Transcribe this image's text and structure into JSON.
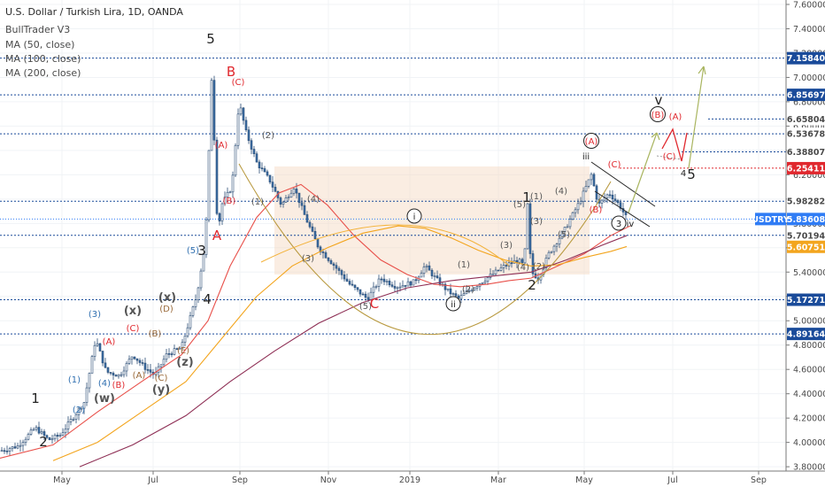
{
  "header": {
    "title": "U.S. Dollar / Turkish Lira, 1D, OANDA",
    "indicator": "BullTrader V3",
    "ma50": "MA (50, close)",
    "ma100": "MA (100, close)",
    "ma200": "MA (200, close)"
  },
  "colors": {
    "wave_black": "#222222",
    "wave_blue": "#2f6fb0",
    "wave_red": "#e0282e",
    "wave_brown": "#9a6a3a",
    "wave_grey": "#555555",
    "ma50": "#e8504a",
    "ma100": "#f3a51e",
    "ma200": "#8e2f55",
    "level_line": "#1a4b9a",
    "price_badge": "#2f73d9",
    "current_badge": "#2f7cf5"
  },
  "chart_data": {
    "type": "candlestick",
    "symbol": "USDTRY",
    "y_axis": {
      "ticks": [
        "7.60000",
        "7.40000",
        "7.20000",
        "7.00000",
        "6.80000",
        "6.60000",
        "6.40000",
        "6.20000",
        "6.00000",
        "5.80000",
        "5.60000",
        "5.40000",
        "5.20000",
        "5.00000",
        "4.80000",
        "4.60000",
        "4.40000",
        "4.20000",
        "4.00000",
        "3.80000"
      ],
      "ylim": [
        3.76,
        7.6
      ]
    },
    "x_axis": {
      "ticks": [
        "May",
        "Jul",
        "Sep",
        "Nov",
        "2019",
        "Mar",
        "May",
        "Jul",
        "Sep"
      ]
    },
    "price_levels": [
      {
        "value": 7.1584,
        "label": "7.15840",
        "style": "dotted",
        "badge": true
      },
      {
        "value": 6.85697,
        "label": "6.85697",
        "style": "dotted",
        "badge": true
      },
      {
        "value": 6.65804,
        "label": "6.65804",
        "style": "short-dotted",
        "badge": false
      },
      {
        "value": 6.53678,
        "label": "6.53678",
        "style": "dotted",
        "badge": false
      },
      {
        "value": 6.38807,
        "label": "6.38807",
        "style": "short-dotted",
        "badge": false
      },
      {
        "value": 6.25411,
        "label": "6.25411",
        "style": "red-dotted",
        "badge": true,
        "color": "#e0282e"
      },
      {
        "value": 5.98282,
        "label": "5.98282",
        "style": "dotted",
        "badge": false
      },
      {
        "value": 5.83608,
        "label": "5.83608",
        "style": "current",
        "badge": true,
        "color": "#2f7cf5"
      },
      {
        "value": 5.70194,
        "label": "5.70194",
        "style": "dotted",
        "badge": false
      },
      {
        "value": 5.60751,
        "label": "5.60751",
        "style": "ma",
        "badge": true,
        "color": "#f3a51e"
      },
      {
        "value": 5.17271,
        "label": "5.17271",
        "style": "dotted",
        "badge": true
      },
      {
        "value": 4.89164,
        "label": "4.89164",
        "style": "dotted",
        "badge": true
      }
    ],
    "current_price": {
      "symbol": "USDTRY",
      "value": "5.83608"
    },
    "series": [
      {
        "name": "MA (50, close)",
        "color": "#e8504a"
      },
      {
        "name": "MA (100, close)",
        "color": "#f3a51e"
      },
      {
        "name": "MA (200, close)",
        "color": "#8e2f55"
      }
    ],
    "wave_labels": [
      {
        "text": "1",
        "color": "black"
      },
      {
        "text": "2",
        "color": "black"
      },
      {
        "text": "(1)",
        "color": "blue"
      },
      {
        "text": "(2)",
        "color": "blue"
      },
      {
        "text": "(3)",
        "color": "blue"
      },
      {
        "text": "(4)",
        "color": "blue"
      },
      {
        "text": "(A)",
        "color": "red"
      },
      {
        "text": "(B)",
        "color": "red"
      },
      {
        "text": "(C)",
        "color": "red"
      },
      {
        "text": "(w)",
        "color": "grey"
      },
      {
        "text": "(x)",
        "color": "grey"
      },
      {
        "text": "(y)",
        "color": "grey"
      },
      {
        "text": "(z)",
        "color": "grey"
      },
      {
        "text": "(A)",
        "color": "brown"
      },
      {
        "text": "(B)",
        "color": "brown"
      },
      {
        "text": "(C)",
        "color": "brown"
      },
      {
        "text": "(D)",
        "color": "brown"
      },
      {
        "text": "(E)",
        "color": "brown"
      },
      {
        "text": "(x)",
        "color": "grey"
      },
      {
        "text": "3",
        "color": "black"
      },
      {
        "text": "4",
        "color": "black"
      },
      {
        "text": "(5)",
        "color": "blue"
      },
      {
        "text": "5",
        "color": "black"
      },
      {
        "text": "A",
        "color": "red"
      },
      {
        "text": "B",
        "color": "red"
      },
      {
        "text": "(C)",
        "color": "red"
      },
      {
        "text": "(A)",
        "color": "red"
      },
      {
        "text": "(B)",
        "color": "red"
      },
      {
        "text": "(1)",
        "color": "grey"
      },
      {
        "text": "(2)",
        "color": "grey"
      },
      {
        "text": "(3)",
        "color": "grey"
      },
      {
        "text": "(4)",
        "color": "grey"
      },
      {
        "text": "(5)",
        "color": "grey"
      },
      {
        "text": "C",
        "color": "red"
      },
      {
        "text": "i",
        "color": "circle"
      },
      {
        "text": "ii",
        "color": "circle"
      },
      {
        "text": "(1)",
        "color": "grey"
      },
      {
        "text": "(2)",
        "color": "grey"
      },
      {
        "text": "1",
        "color": "black"
      },
      {
        "text": "(5)",
        "color": "grey"
      },
      {
        "text": "(3)",
        "color": "grey"
      },
      {
        "text": "(4)",
        "color": "grey"
      },
      {
        "text": "2",
        "color": "black"
      },
      {
        "text": "(1)",
        "color": "grey"
      },
      {
        "text": "(2)",
        "color": "grey"
      },
      {
        "text": "(3)",
        "color": "grey"
      },
      {
        "text": "(4)",
        "color": "grey"
      },
      {
        "text": "(5)",
        "color": "grey"
      },
      {
        "text": "iii",
        "color": "circle"
      },
      {
        "text": "(A)",
        "color": "red"
      },
      {
        "text": "(B)",
        "color": "red"
      },
      {
        "text": "(C)",
        "color": "red"
      },
      {
        "text": "iv",
        "color": "circle"
      },
      {
        "text": "3",
        "color": "black"
      },
      {
        "text": "v",
        "color": "circle"
      },
      {
        "text": "(B)",
        "color": "red"
      },
      {
        "text": "(A)",
        "color": "red"
      },
      {
        "text": "(C)",
        "color": "red"
      },
      {
        "text": "4",
        "color": "black"
      },
      {
        "text": "5",
        "color": "black"
      }
    ]
  }
}
